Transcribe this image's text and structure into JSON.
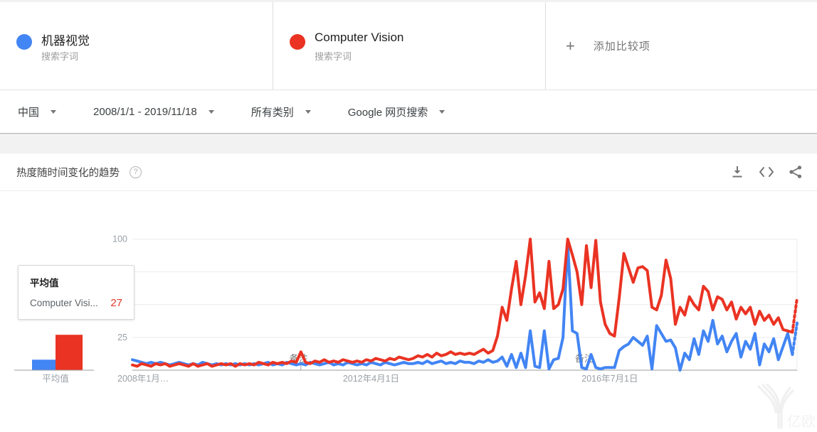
{
  "terms": [
    {
      "label": "机器视觉",
      "type_label": "搜索字词",
      "color": "#4285f4"
    },
    {
      "label": "Computer Vision",
      "type_label": "搜索字词",
      "color": "#ea3323"
    }
  ],
  "add_comparison": {
    "plus": "+",
    "label": "添加比较项"
  },
  "filters": {
    "region": "中国",
    "date_range": "2008/1/1 - 2019/11/18",
    "category": "所有类别",
    "search_type": "Google 网页搜索"
  },
  "panel": {
    "title": "热度随时间变化的趋势",
    "help_glyph": "?",
    "icons": [
      "download-icon",
      "embed-icon",
      "share-icon"
    ]
  },
  "tooltip": {
    "title": "平均值",
    "rows": [
      {
        "name": "Computer Visi...",
        "value": "27",
        "color": "#e4372b"
      }
    ]
  },
  "watermark_text": "亿欧",
  "chart_data": {
    "type": "line",
    "title": "热度随时间变化的趋势",
    "x_start": "2008-01",
    "x_end": "2019-11",
    "x_unit": "month",
    "ylim": [
      0,
      100
    ],
    "gridlines": [
      100,
      75,
      50,
      25
    ],
    "yticks": [
      100,
      25
    ],
    "xticks": [
      {
        "label": "2008年1月…",
        "x_index": 0,
        "align": "left"
      },
      {
        "label": "2012年4月1日",
        "x_index": 51,
        "align": "center"
      },
      {
        "label": "2016年7月1日",
        "x_index": 102,
        "align": "center"
      }
    ],
    "annotations": [
      {
        "label": "备注",
        "x_index": 36
      },
      {
        "label": "备注",
        "x_index": 97
      }
    ],
    "dashed_tail_points": 2,
    "averages_label": "平均值",
    "series": [
      {
        "name": "机器视觉",
        "color": "#4285f4",
        "average": 8,
        "values": [
          8,
          7,
          6,
          5,
          6,
          5,
          6,
          5,
          4,
          5,
          6,
          5,
          4,
          5,
          4,
          6,
          5,
          4,
          5,
          4,
          5,
          4,
          5,
          4,
          5,
          4,
          5,
          4,
          5,
          6,
          4,
          5,
          4,
          6,
          5,
          4,
          5,
          4,
          6,
          5,
          4,
          5,
          6,
          4,
          5,
          4,
          6,
          5,
          4,
          5,
          4,
          6,
          5,
          4,
          6,
          5,
          4,
          5,
          6,
          5,
          5,
          6,
          5,
          7,
          5,
          6,
          7,
          5,
          6,
          5,
          7,
          6,
          6,
          5,
          7,
          6,
          8,
          6,
          7,
          10,
          3,
          12,
          2,
          13,
          2,
          30,
          3,
          2,
          30,
          1,
          8,
          9,
          25,
          97,
          30,
          28,
          2,
          1,
          12,
          2,
          1,
          2,
          2,
          2,
          15,
          18,
          20,
          25,
          22,
          19,
          26,
          1,
          34,
          28,
          22,
          23,
          17,
          0,
          13,
          8,
          24,
          12,
          30,
          22,
          38,
          20,
          26,
          14,
          22,
          28,
          10,
          22,
          16,
          28,
          4,
          20,
          14,
          24,
          8,
          18,
          28,
          12,
          36
        ]
      },
      {
        "name": "Computer Vision",
        "color": "#ea3323",
        "average": 27,
        "values": [
          4,
          3,
          5,
          4,
          3,
          5,
          4,
          5,
          3,
          4,
          5,
          4,
          3,
          5,
          3,
          4,
          5,
          3,
          4,
          5,
          4,
          5,
          3,
          5,
          4,
          5,
          4,
          6,
          5,
          4,
          6,
          5,
          6,
          5,
          7,
          6,
          14,
          6,
          5,
          7,
          6,
          8,
          6,
          7,
          6,
          8,
          7,
          6,
          7,
          6,
          8,
          7,
          9,
          8,
          7,
          9,
          8,
          10,
          9,
          8,
          9,
          11,
          10,
          12,
          10,
          13,
          11,
          12,
          14,
          12,
          13,
          12,
          13,
          12,
          14,
          16,
          13,
          15,
          26,
          48,
          38,
          62,
          83,
          50,
          72,
          100,
          52,
          59,
          47,
          83,
          47,
          50,
          62,
          100,
          88,
          75,
          50,
          95,
          63,
          99,
          52,
          35,
          28,
          26,
          55,
          89,
          78,
          67,
          78,
          79,
          76,
          48,
          46,
          57,
          84,
          70,
          35,
          48,
          42,
          56,
          50,
          46,
          64,
          60,
          46,
          56,
          54,
          46,
          52,
          39,
          48,
          43,
          48,
          35,
          45,
          38,
          42,
          35,
          40,
          31,
          30,
          29,
          55
        ]
      }
    ]
  }
}
